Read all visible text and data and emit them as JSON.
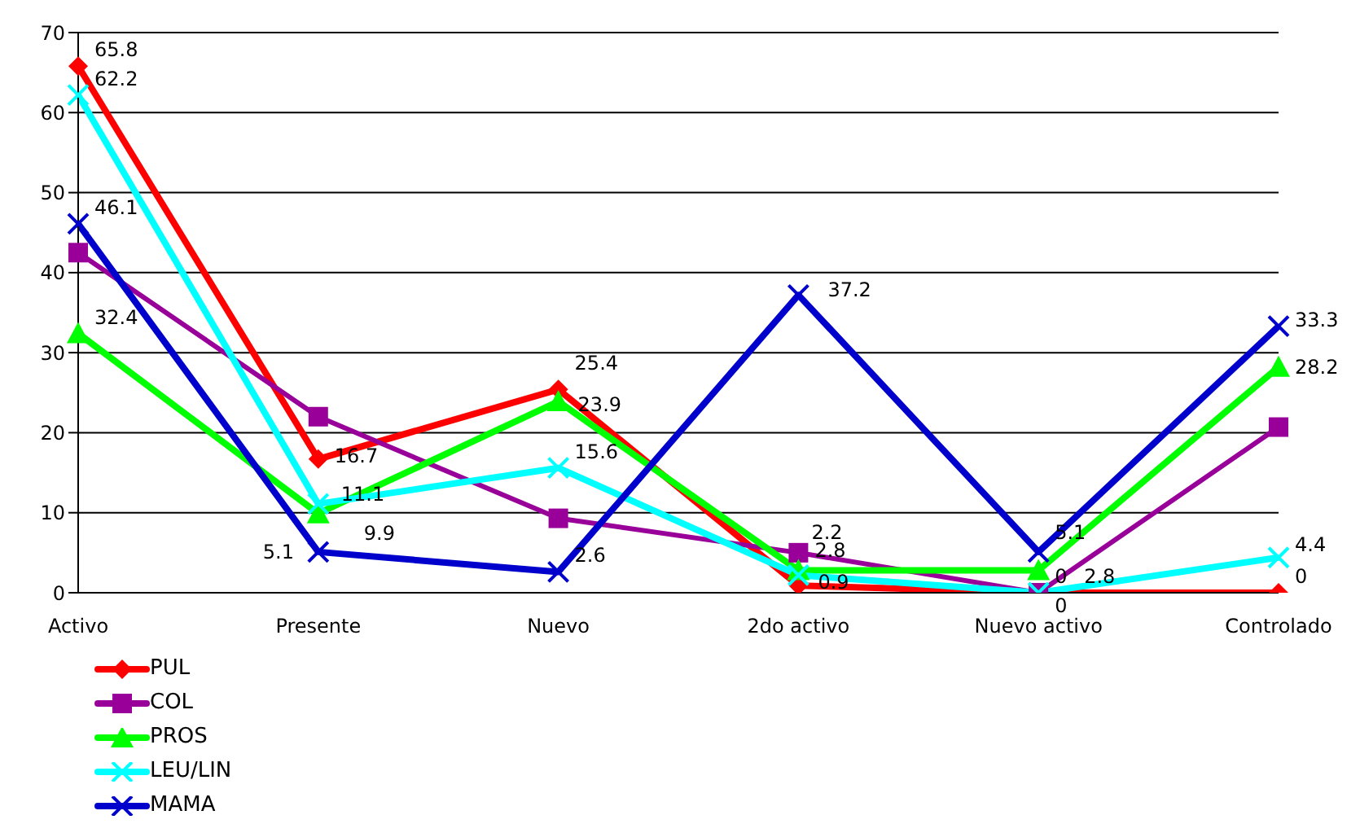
{
  "chart_data": {
    "type": "line",
    "categories": [
      "Activo",
      "Presente",
      "Nuevo",
      "2do activo",
      "Nuevo activo",
      "Controlado"
    ],
    "ylim": [
      0,
      70
    ],
    "yticks": [
      0,
      10,
      20,
      30,
      40,
      50,
      60,
      70
    ],
    "grid": "y",
    "legend": "bottom left",
    "series": [
      {
        "name": "PUL",
        "color": "#ff0000",
        "marker": "diamond",
        "values": [
          65.8,
          16.7,
          25.4,
          0.9,
          0,
          0
        ],
        "value_labels": [
          "65.8",
          "16.7",
          "25.4",
          "0.9",
          "0",
          "0"
        ]
      },
      {
        "name": "COL",
        "color": "#990099",
        "marker": "square",
        "values": [
          42.5,
          22,
          9.3,
          5,
          0,
          20.7
        ],
        "value_labels": [
          null,
          null,
          null,
          null,
          null,
          null
        ]
      },
      {
        "name": "PROS",
        "color": "#00ff00",
        "marker": "triangle",
        "values": [
          32.4,
          9.9,
          23.9,
          2.8,
          2.8,
          28.2
        ],
        "value_labels": [
          "32.4",
          "9.9",
          "23.9",
          "2.8",
          "2.8",
          "28.2"
        ]
      },
      {
        "name": "LEU/LIN",
        "color": "#00ffff",
        "marker": "cross",
        "values": [
          62.2,
          11.1,
          15.6,
          2.2,
          0,
          4.4
        ],
        "value_labels": [
          "62.2",
          "11.1",
          "15.6",
          "2.2",
          "0",
          "4.4"
        ]
      },
      {
        "name": "MAMA",
        "color": "#0000cc",
        "marker": "cross",
        "values": [
          46.1,
          5.1,
          2.6,
          37.2,
          5.1,
          33.3
        ],
        "value_labels": [
          "46.1",
          "5.1",
          "2.6",
          "37.2",
          "5.1",
          "33.3"
        ]
      }
    ]
  }
}
